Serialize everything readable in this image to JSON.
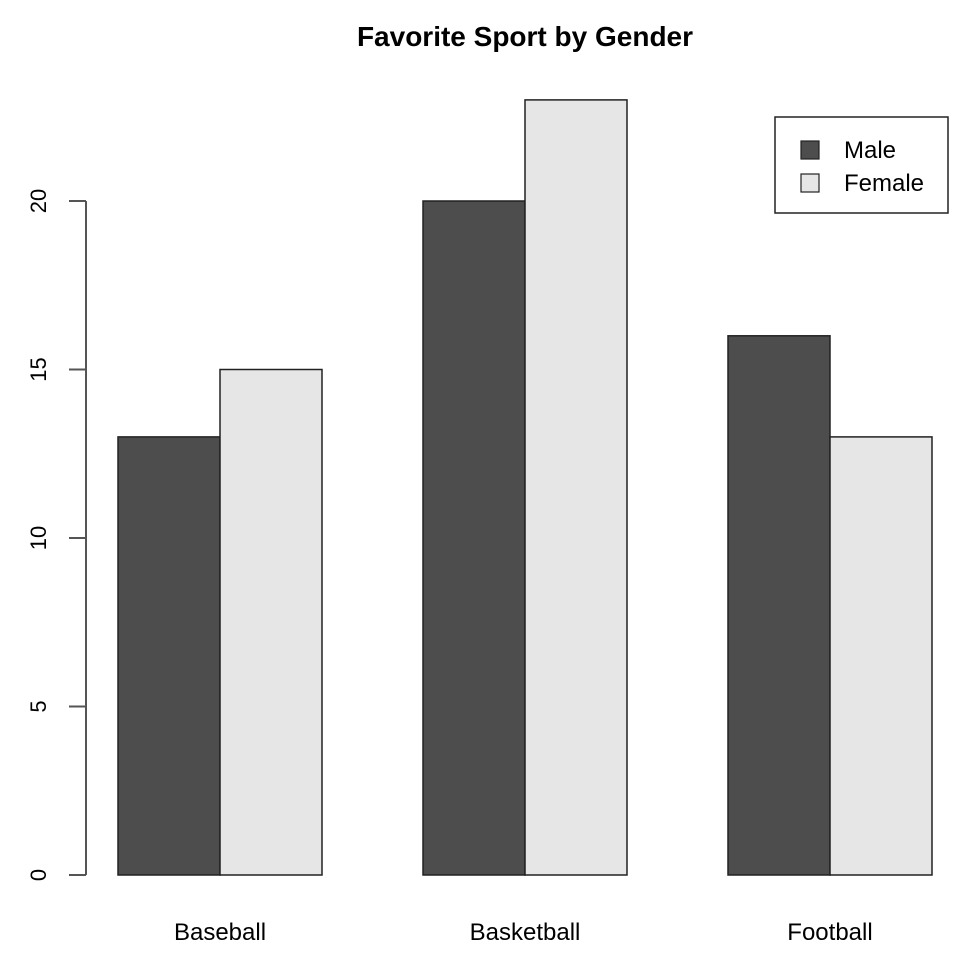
{
  "chart_data": {
    "type": "bar",
    "title": "Favorite Sport by Gender",
    "xlabel": "",
    "ylabel": "",
    "categories": [
      "Baseball",
      "Basketball",
      "Football"
    ],
    "series": [
      {
        "name": "Male",
        "values": [
          13,
          20,
          16
        ],
        "color": "#4d4d4d"
      },
      {
        "name": "Female",
        "values": [
          15,
          23,
          13
        ],
        "color": "#e6e6e6"
      }
    ],
    "ylim": [
      0,
      23
    ],
    "yticks": [
      0,
      5,
      10,
      15,
      20
    ],
    "grid": false,
    "legend_position": "topright",
    "barmode": "grouped"
  }
}
